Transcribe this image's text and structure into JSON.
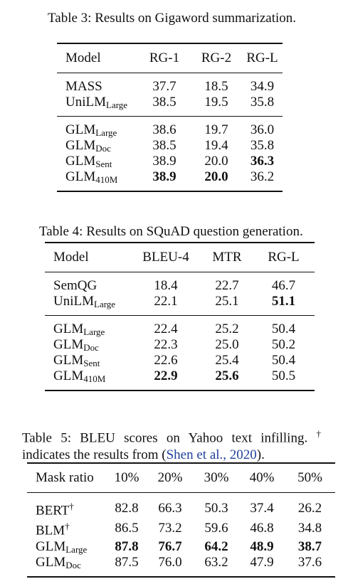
{
  "table3": {
    "caption": "Table 3: Results on Gigaword summarization.",
    "headers": [
      "Model",
      "RG-1",
      "RG-2",
      "RG-L"
    ],
    "groups": [
      [
        {
          "name": "MASS",
          "sub": "",
          "values": [
            "37.7",
            "18.5",
            "34.9"
          ],
          "bold": [
            false,
            false,
            false
          ]
        },
        {
          "name": "UniLM",
          "sub": "Large",
          "values": [
            "38.5",
            "19.5",
            "35.8"
          ],
          "bold": [
            false,
            false,
            false
          ]
        }
      ],
      [
        {
          "name": "GLM",
          "sub": "Large",
          "values": [
            "38.6",
            "19.7",
            "36.0"
          ],
          "bold": [
            false,
            false,
            false
          ]
        },
        {
          "name": "GLM",
          "sub": "Doc",
          "values": [
            "38.5",
            "19.4",
            "35.8"
          ],
          "bold": [
            false,
            false,
            false
          ]
        },
        {
          "name": "GLM",
          "sub": "Sent",
          "values": [
            "38.9",
            "20.0",
            "36.3"
          ],
          "bold": [
            false,
            false,
            true
          ]
        },
        {
          "name": "GLM",
          "sub": "410M",
          "values": [
            "38.9",
            "20.0",
            "36.2"
          ],
          "bold": [
            true,
            true,
            false
          ]
        }
      ]
    ]
  },
  "table4": {
    "caption": "Table 4: Results on SQuAD question generation.",
    "headers": [
      "Model",
      "BLEU-4",
      "MTR",
      "RG-L"
    ],
    "groups": [
      [
        {
          "name": "SemQG",
          "sub": "",
          "values": [
            "18.4",
            "22.7",
            "46.7"
          ],
          "bold": [
            false,
            false,
            false
          ]
        },
        {
          "name": "UniLM",
          "sub": "Large",
          "values": [
            "22.1",
            "25.1",
            "51.1"
          ],
          "bold": [
            false,
            false,
            true
          ]
        }
      ],
      [
        {
          "name": "GLM",
          "sub": "Large",
          "values": [
            "22.4",
            "25.2",
            "50.4"
          ],
          "bold": [
            false,
            false,
            false
          ]
        },
        {
          "name": "GLM",
          "sub": "Doc",
          "values": [
            "22.3",
            "25.0",
            "50.2"
          ],
          "bold": [
            false,
            false,
            false
          ]
        },
        {
          "name": "GLM",
          "sub": "Sent",
          "values": [
            "22.6",
            "25.4",
            "50.4"
          ],
          "bold": [
            false,
            false,
            false
          ]
        },
        {
          "name": "GLM",
          "sub": "410M",
          "values": [
            "22.9",
            "25.6",
            "50.5"
          ],
          "bold": [
            true,
            true,
            false
          ]
        }
      ]
    ]
  },
  "table5": {
    "caption_pre": "Table 5: BLEU scores on Yahoo text infilling.",
    "caption_dagger": "†",
    "caption_mid": "indicates the results from (",
    "caption_cite": "Shen et al., 2020",
    "caption_post": ").",
    "headers": [
      "Mask ratio",
      "10%",
      "20%",
      "30%",
      "40%",
      "50%"
    ],
    "groups": [
      [
        {
          "name": "BERT",
          "sup": "†",
          "sub": "",
          "values": [
            "82.8",
            "66.3",
            "50.3",
            "37.4",
            "26.2"
          ],
          "bold": [
            false,
            false,
            false,
            false,
            false
          ]
        },
        {
          "name": "BLM",
          "sup": "†",
          "sub": "",
          "values": [
            "86.5",
            "73.2",
            "59.6",
            "46.8",
            "34.8"
          ],
          "bold": [
            false,
            false,
            false,
            false,
            false
          ]
        },
        {
          "name": "GLM",
          "sup": "",
          "sub": "Large",
          "values": [
            "87.8",
            "76.7",
            "64.2",
            "48.9",
            "38.7"
          ],
          "bold": [
            true,
            true,
            true,
            true,
            true
          ]
        },
        {
          "name": "GLM",
          "sup": "",
          "sub": "Doc",
          "values": [
            "87.5",
            "76.0",
            "63.2",
            "47.9",
            "37.6"
          ],
          "bold": [
            false,
            false,
            false,
            false,
            false
          ]
        }
      ]
    ]
  }
}
